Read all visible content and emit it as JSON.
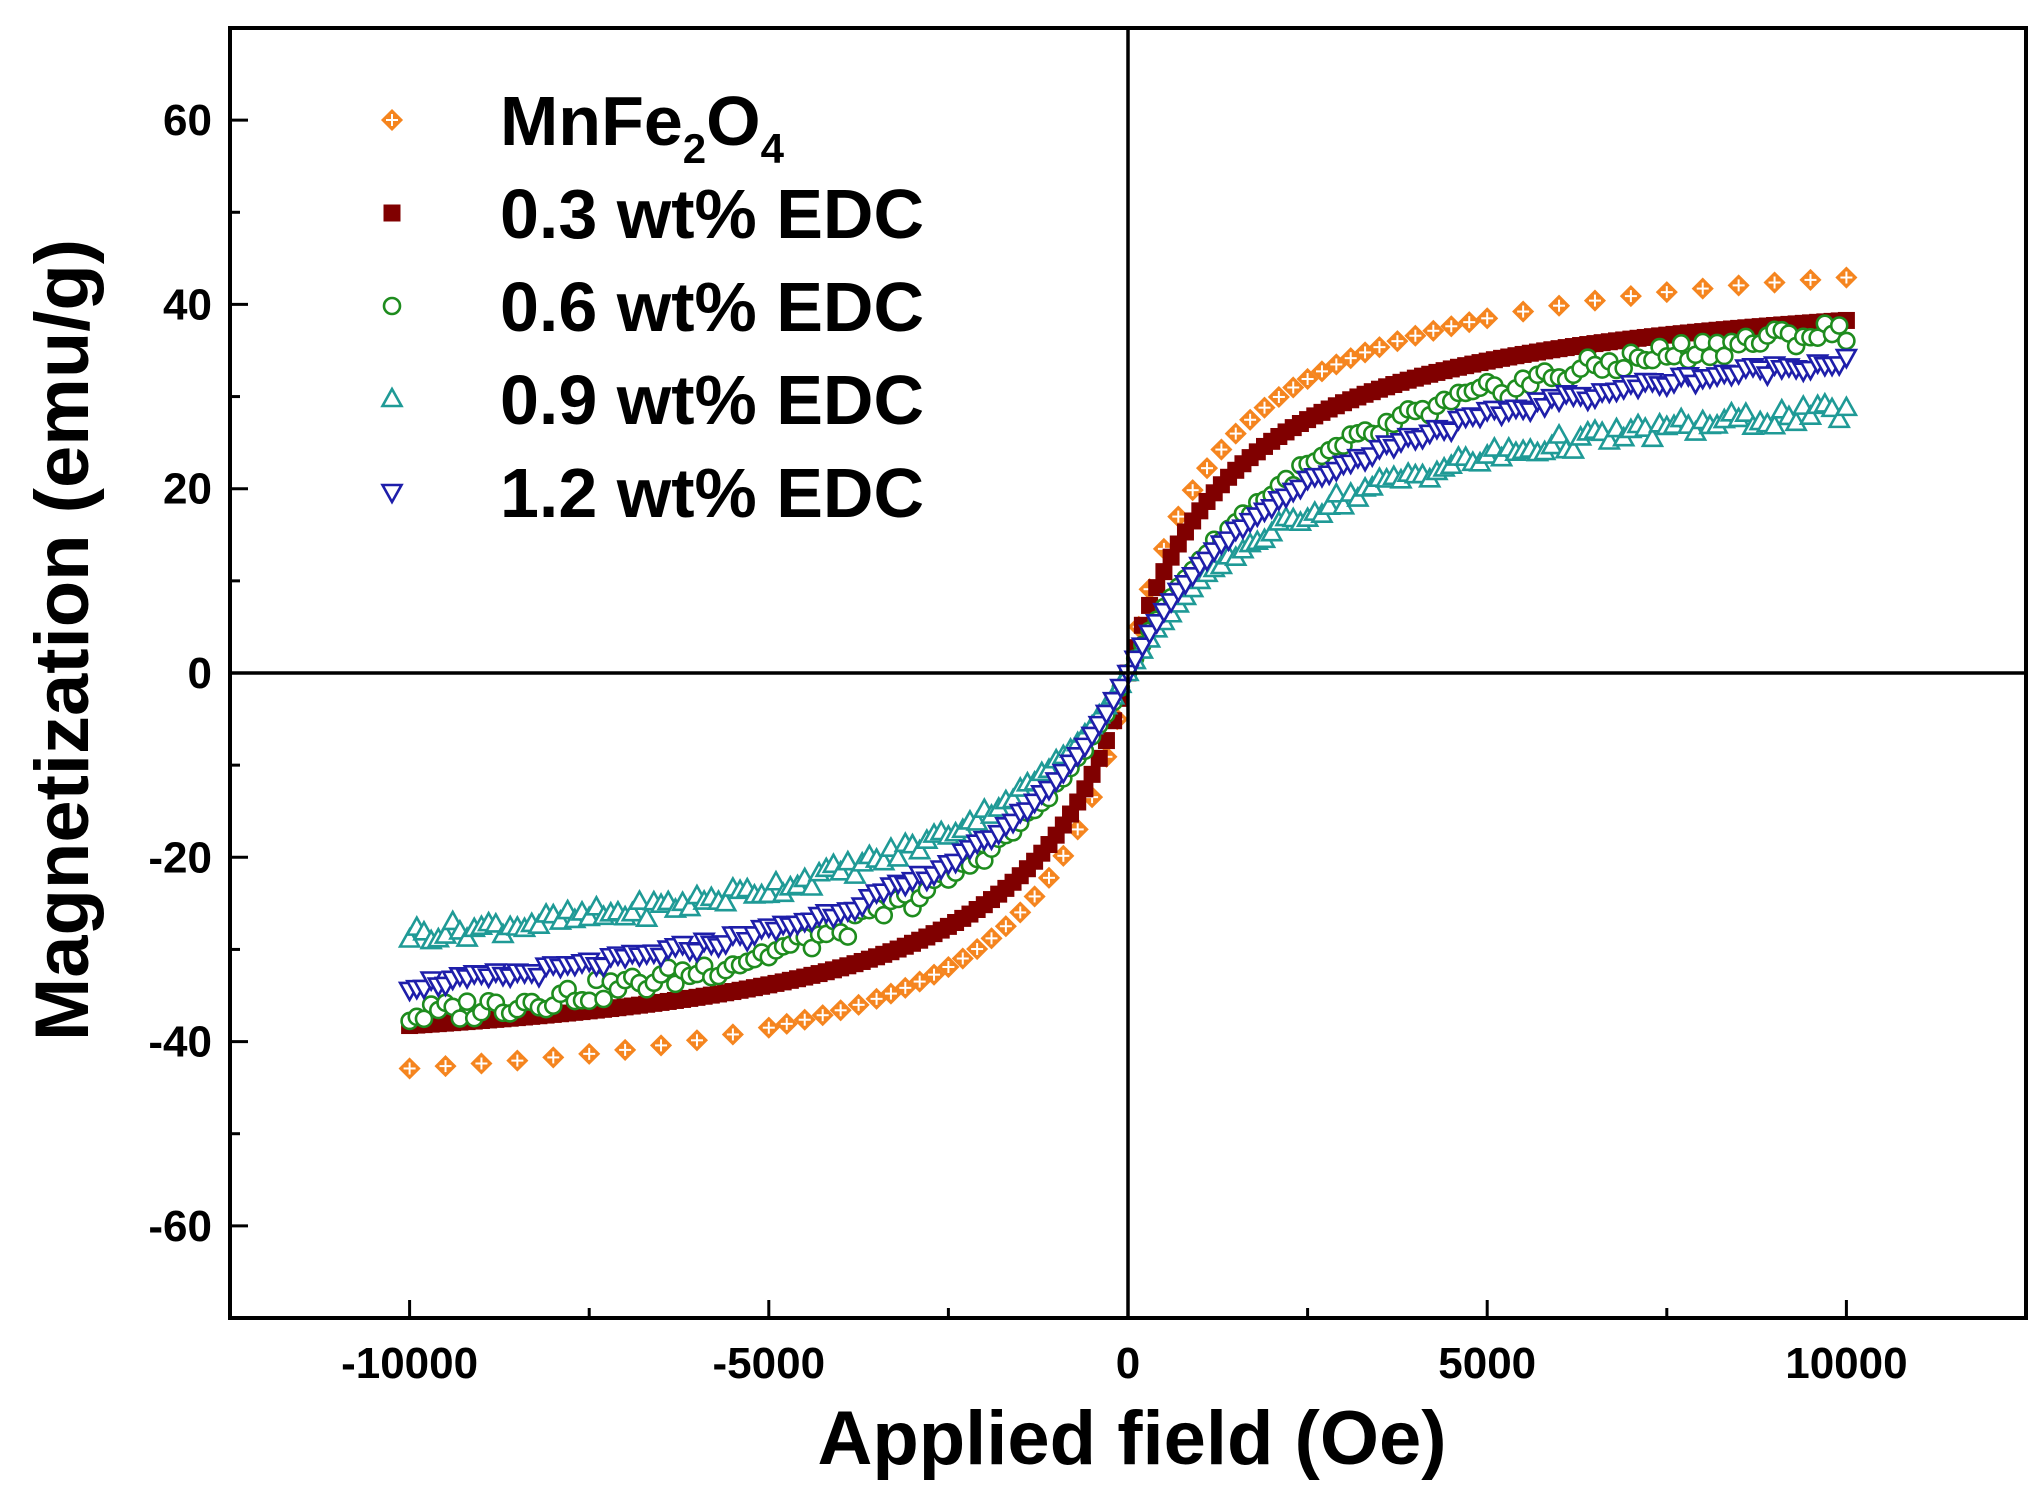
{
  "chart_data": {
    "type": "scatter",
    "title": "",
    "xlabel": "Applied field (Oe)",
    "ylabel": "Magnetization (emu/g)",
    "xlim": [
      -12500,
      12500
    ],
    "ylim": [
      -70,
      70
    ],
    "xticks": [
      -10000,
      -5000,
      0,
      5000,
      10000
    ],
    "xtick_labels": [
      "-10000",
      "-5000",
      "0",
      "5000",
      "10000"
    ],
    "yticks": [
      -60,
      -40,
      -20,
      0,
      20,
      40,
      60
    ],
    "ytick_labels": [
      "-60",
      "-40",
      "-20",
      "0",
      "20",
      "40",
      "60"
    ],
    "grid": false,
    "legend_position": "top-left",
    "series": [
      {
        "name": "MnFe2O4",
        "legend": {
          "base": "MnFe",
          "sub1": "2",
          "mid": "O",
          "sub2": "4"
        },
        "marker": "diamond-cross",
        "color": "#F5851F",
        "filled": false,
        "Ms": 48.5,
        "H0": 1300,
        "noise": 0,
        "spacing": "sparse"
      },
      {
        "name": "0.3 wt% EDC",
        "legend_label": "0.3 wt% EDC",
        "marker": "square",
        "color": "#800000",
        "filled": true,
        "Ms": 44,
        "H0": 1500,
        "noise": 0,
        "spacing": "dense"
      },
      {
        "name": "0.6 wt% EDC",
        "legend_label": "0.6 wt% EDC",
        "marker": "circle",
        "color": "#1E8C1E",
        "filled": false,
        "Ms": 48,
        "H0": 2900,
        "noise": 1.2,
        "spacing": "dense"
      },
      {
        "name": "0.9 wt% EDC",
        "legend_label": "0.9 wt% EDC",
        "marker": "triangle-up",
        "color": "#1F9A96",
        "filled": false,
        "Ms": 36,
        "H0": 2700,
        "noise": 1.0,
        "spacing": "dense"
      },
      {
        "name": "1.2 wt% EDC",
        "legend_label": "1.2 wt% EDC",
        "marker": "triangle-down",
        "color": "#1E1EAA",
        "filled": false,
        "Ms": 43,
        "H0": 2700,
        "noise": 0.6,
        "spacing": "dense"
      }
    ]
  }
}
